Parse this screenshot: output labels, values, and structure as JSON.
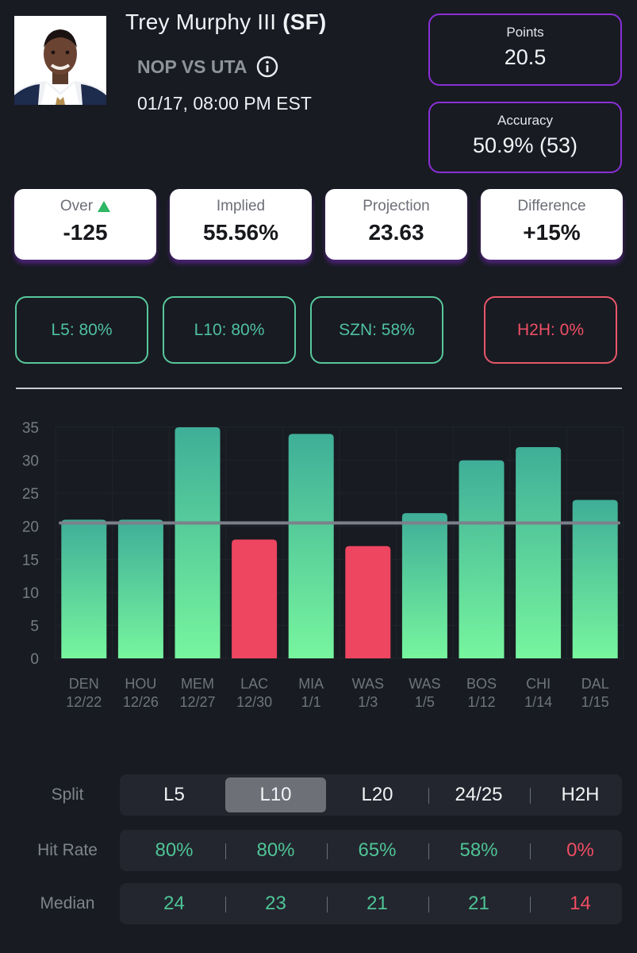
{
  "player": {
    "name": "Trey Murphy III",
    "position": "(SF)",
    "matchup": "NOP VS UTA",
    "game_time": "01/17, 08:00 PM EST"
  },
  "stat_cards": {
    "points": {
      "label": "Points",
      "value": "20.5"
    },
    "accuracy": {
      "label": "Accuracy",
      "value": "50.9% (53)"
    }
  },
  "summary": [
    {
      "label": "Over",
      "value": "-125",
      "icon": "triangle-up-icon"
    },
    {
      "label": "Implied",
      "value": "55.56%"
    },
    {
      "label": "Projection",
      "value": "23.63"
    },
    {
      "label": "Difference",
      "value": "+15%"
    }
  ],
  "hit_pills": [
    {
      "label": "L5: 80%",
      "status": "good"
    },
    {
      "label": "L10: 80%",
      "status": "good"
    },
    {
      "label": "SZN: 58%",
      "status": "good"
    },
    {
      "label": "H2H: 0%",
      "status": "bad"
    }
  ],
  "colors": {
    "accent_purple": "#8a2fd6",
    "good": "#4ec496",
    "bad": "#ef4d63",
    "bar_top": "#3fae98",
    "bar_bottom": "#77f59e",
    "bar_miss": "#ee4560"
  },
  "chart_data": {
    "type": "bar",
    "categories": [
      "DEN",
      "HOU",
      "MEM",
      "LAC",
      "MIA",
      "WAS",
      "WAS",
      "BOS",
      "CHI",
      "DAL"
    ],
    "dates": [
      "12/22",
      "12/26",
      "12/27",
      "12/30",
      "1/1",
      "1/3",
      "1/5",
      "1/12",
      "1/14",
      "1/15"
    ],
    "values": [
      21,
      21,
      35,
      18,
      34,
      17,
      22,
      30,
      32,
      24
    ],
    "line": 20.5,
    "y_ticks": [
      0,
      5,
      10,
      15,
      20,
      25,
      30,
      35
    ],
    "ylim": [
      0,
      35
    ],
    "title": "",
    "xlabel": "",
    "ylabel": ""
  },
  "split_table": {
    "labels": {
      "split": "Split",
      "hit_rate": "Hit Rate",
      "median": "Median"
    },
    "splits": [
      "L5",
      "L10",
      "L20",
      "24/25",
      "H2H"
    ],
    "active_split": "L10",
    "hit_rates": [
      {
        "value": "80%",
        "status": "good"
      },
      {
        "value": "80%",
        "status": "good"
      },
      {
        "value": "65%",
        "status": "good"
      },
      {
        "value": "58%",
        "status": "good"
      },
      {
        "value": "0%",
        "status": "bad"
      }
    ],
    "medians": [
      {
        "value": "24",
        "status": "good"
      },
      {
        "value": "23",
        "status": "good"
      },
      {
        "value": "21",
        "status": "good"
      },
      {
        "value": "21",
        "status": "good"
      },
      {
        "value": "14",
        "status": "bad"
      }
    ]
  }
}
